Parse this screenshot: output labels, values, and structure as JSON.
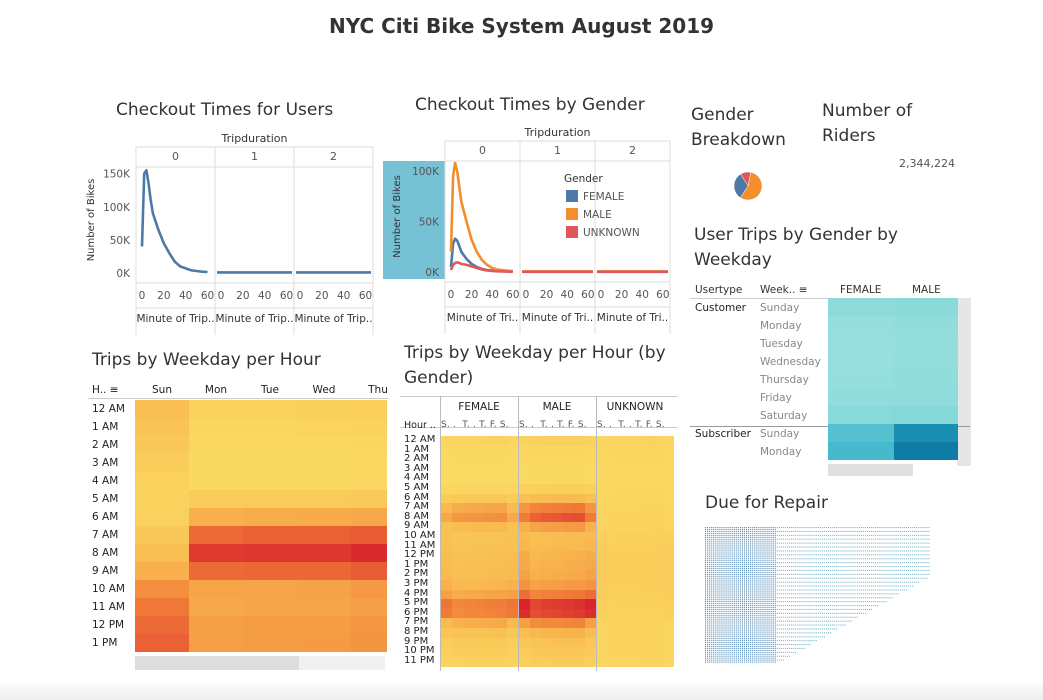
{
  "dashboard": {
    "title": "NYC Citi Bike System August 2019",
    "colors": {
      "line_blue": "#4e79a7",
      "orange": "#f28e2b",
      "red": "#e15759",
      "highlight": "#76c1d4",
      "teal_light": "#a3e4e0",
      "teal_dark": "#0e7fa8"
    }
  },
  "checkout_users": {
    "title": "Checkout Times for Users",
    "header": "Tripduration",
    "panels": [
      "0",
      "1",
      "2"
    ],
    "ylabel": "Number of Bikes",
    "xlabel": "Minute of Trip..",
    "yticks": [
      "150K",
      "100K",
      "50K",
      "0K"
    ],
    "xticks": [
      "0",
      "20",
      "40",
      "60"
    ]
  },
  "checkout_gender": {
    "title": "Checkout Times by Gender",
    "header": "Tripduration",
    "panels": [
      "0",
      "1",
      "2"
    ],
    "ylabel": "Number of Bikes",
    "xlabel": "Minute of Tri..",
    "yticks": [
      "100K",
      "50K",
      "0K"
    ],
    "xticks": [
      "0",
      "20",
      "40",
      "60"
    ],
    "legend_title": "Gender",
    "legend": [
      {
        "label": "FEMALE",
        "color": "#4e79a7"
      },
      {
        "label": "MALE",
        "color": "#f28e2b"
      },
      {
        "label": "UNKNOWN",
        "color": "#e15759"
      }
    ]
  },
  "gender_breakdown": {
    "title": "Gender Breakdown"
  },
  "riders": {
    "title": "Number of Riders",
    "value": "2,344,224"
  },
  "user_trips": {
    "title": "User Trips by Gender by Weekday",
    "col_usertype": "Usertype",
    "col_weekday": "Week..",
    "col_female": "FEMALE",
    "col_male": "MALE",
    "groups": [
      {
        "name": "Customer",
        "days": [
          "Sunday",
          "Monday",
          "Tuesday",
          "Wednesday",
          "Thursday",
          "Friday",
          "Saturday"
        ]
      },
      {
        "name": "Subscriber",
        "days": [
          "Sunday",
          "Monday"
        ]
      }
    ]
  },
  "weekday_hour": {
    "title": "Trips by Weekday per Hour",
    "row_header": "H..",
    "columns": [
      "Sun",
      "Mon",
      "Tue",
      "Wed",
      "Thu"
    ],
    "rows": [
      "12 AM",
      "1 AM",
      "2 AM",
      "3 AM",
      "4 AM",
      "5 AM",
      "6 AM",
      "7 AM",
      "8 AM",
      "9 AM",
      "10 AM",
      "11 AM",
      "12 PM",
      "1 PM"
    ]
  },
  "weekday_hour_gender": {
    "title": "Trips by Weekday per Hour (by Gender)",
    "row_header": "Hour ..",
    "groups": [
      "FEMALE",
      "MALE",
      "UNKNOWN"
    ],
    "day_letters": "S. .  T. . T. F. S.",
    "rows": [
      "12 AM",
      "1 AM",
      "2 AM",
      "3 AM",
      "4 AM",
      "5 AM",
      "6 AM",
      "7 AM",
      "8 AM",
      "9 AM",
      "10 AM",
      "11 AM",
      "12 PM",
      "1 PM",
      "2 PM",
      "3 PM",
      "4 PM",
      "5 PM",
      "6 PM",
      "7 PM",
      "8 PM",
      "9 PM",
      "10 PM",
      "11 PM"
    ]
  },
  "repair": {
    "title": "Due for Repair"
  },
  "chart_data": [
    {
      "type": "line",
      "title": "Checkout Times for Users",
      "xlabel": "Minute of Trip..",
      "ylabel": "Number of Bikes",
      "ylim": [
        0,
        160000
      ],
      "x": [
        0,
        2,
        4,
        6,
        8,
        10,
        15,
        20,
        25,
        30,
        35,
        40,
        45,
        50,
        55,
        60
      ],
      "series": [
        {
          "values": [
            40000,
            150000,
            155000,
            135000,
            110000,
            90000,
            65000,
            45000,
            30000,
            17000,
            10000,
            7000,
            4000,
            3000,
            2000,
            1500
          ]
        }
      ]
    },
    {
      "type": "line",
      "title": "Checkout Times by Gender",
      "xlabel": "Minute of Tri..",
      "ylabel": "Number of Bikes",
      "ylim": [
        0,
        110000
      ],
      "x": [
        0,
        2,
        4,
        6,
        8,
        10,
        15,
        20,
        25,
        30,
        35,
        40,
        45,
        50,
        55,
        60
      ],
      "series": [
        {
          "name": "FEMALE",
          "values": [
            5000,
            28000,
            33000,
            31000,
            26000,
            20000,
            13000,
            8000,
            5000,
            3000,
            2000,
            1500,
            1000,
            800,
            600,
            500
          ]
        },
        {
          "name": "MALE",
          "values": [
            20000,
            95000,
            108000,
            100000,
            85000,
            70000,
            50000,
            32000,
            20000,
            12000,
            7000,
            4000,
            2500,
            1800,
            1200,
            1000
          ]
        },
        {
          "name": "UNKNOWN",
          "values": [
            2000,
            7000,
            9000,
            9500,
            9000,
            8000,
            7000,
            5500,
            4000,
            2500,
            1500,
            1000,
            700,
            500,
            400,
            300
          ]
        }
      ]
    },
    {
      "type": "pie",
      "title": "Gender Breakdown",
      "slices": [
        {
          "name": "MALE",
          "value": 0.56
        },
        {
          "name": "FEMALE",
          "value": 0.32
        },
        {
          "name": "UNKNOWN",
          "value": 0.12
        }
      ]
    },
    {
      "type": "heatmap",
      "title": "User Trips by Gender by Weekday",
      "rows": [
        "Customer Sunday",
        "Customer Monday",
        "Customer Tuesday",
        "Customer Wednesday",
        "Customer Thursday",
        "Customer Friday",
        "Customer Saturday",
        "Subscriber Sunday",
        "Subscriber Monday"
      ],
      "columns": [
        "FEMALE",
        "MALE"
      ],
      "values": [
        [
          0.3,
          0.32
        ],
        [
          0.22,
          0.24
        ],
        [
          0.2,
          0.22
        ],
        [
          0.2,
          0.23
        ],
        [
          0.22,
          0.25
        ],
        [
          0.24,
          0.28
        ],
        [
          0.34,
          0.38
        ],
        [
          0.55,
          0.85
        ],
        [
          0.6,
          0.95
        ]
      ]
    },
    {
      "type": "heatmap",
      "title": "Trips by Weekday per Hour",
      "rows": [
        "12 AM",
        "1 AM",
        "2 AM",
        "3 AM",
        "4 AM",
        "5 AM",
        "6 AM",
        "7 AM",
        "8 AM",
        "9 AM",
        "10 AM",
        "11 AM",
        "12 PM",
        "1 PM"
      ],
      "columns": [
        "Sun",
        "Mon",
        "Tue",
        "Wed",
        "Thu"
      ],
      "values": [
        [
          0.35,
          0.15,
          0.15,
          0.16,
          0.18
        ],
        [
          0.3,
          0.1,
          0.1,
          0.11,
          0.12
        ],
        [
          0.25,
          0.08,
          0.08,
          0.08,
          0.09
        ],
        [
          0.2,
          0.06,
          0.06,
          0.06,
          0.07
        ],
        [
          0.15,
          0.06,
          0.06,
          0.06,
          0.07
        ],
        [
          0.12,
          0.2,
          0.21,
          0.21,
          0.22
        ],
        [
          0.15,
          0.45,
          0.46,
          0.47,
          0.48
        ],
        [
          0.25,
          0.75,
          0.78,
          0.78,
          0.8
        ],
        [
          0.35,
          0.92,
          0.93,
          0.93,
          0.98
        ],
        [
          0.45,
          0.75,
          0.76,
          0.76,
          0.8
        ],
        [
          0.6,
          0.5,
          0.5,
          0.51,
          0.55
        ],
        [
          0.7,
          0.48,
          0.49,
          0.49,
          0.52
        ],
        [
          0.75,
          0.52,
          0.53,
          0.53,
          0.56
        ],
        [
          0.78,
          0.52,
          0.53,
          0.54,
          0.57
        ]
      ]
    },
    {
      "type": "heatmap",
      "title": "Trips by Weekday per Hour (by Gender)",
      "rows": [
        "12 AM",
        "1 AM",
        "2 AM",
        "3 AM",
        "4 AM",
        "5 AM",
        "6 AM",
        "7 AM",
        "8 AM",
        "9 AM",
        "10 AM",
        "11 AM",
        "12 PM",
        "1 PM",
        "2 PM",
        "3 PM",
        "4 PM",
        "5 PM",
        "6 PM",
        "7 PM",
        "8 PM",
        "9 PM",
        "10 PM",
        "11 PM"
      ],
      "columns": [
        "FEMALE",
        "MALE",
        "UNKNOWN"
      ],
      "values": [
        [
          0.12,
          0.16,
          0.12
        ],
        [
          0.08,
          0.1,
          0.1
        ],
        [
          0.06,
          0.08,
          0.09
        ],
        [
          0.05,
          0.06,
          0.08
        ],
        [
          0.05,
          0.06,
          0.08
        ],
        [
          0.1,
          0.18,
          0.09
        ],
        [
          0.25,
          0.4,
          0.1
        ],
        [
          0.5,
          0.7,
          0.12
        ],
        [
          0.6,
          0.85,
          0.14
        ],
        [
          0.4,
          0.55,
          0.14
        ],
        [
          0.3,
          0.38,
          0.16
        ],
        [
          0.32,
          0.4,
          0.18
        ],
        [
          0.35,
          0.44,
          0.2
        ],
        [
          0.36,
          0.46,
          0.2
        ],
        [
          0.38,
          0.48,
          0.2
        ],
        [
          0.42,
          0.55,
          0.19
        ],
        [
          0.5,
          0.7,
          0.18
        ],
        [
          0.68,
          0.95,
          0.16
        ],
        [
          0.66,
          0.92,
          0.15
        ],
        [
          0.48,
          0.65,
          0.14
        ],
        [
          0.32,
          0.44,
          0.13
        ],
        [
          0.24,
          0.33,
          0.13
        ],
        [
          0.2,
          0.27,
          0.13
        ],
        [
          0.15,
          0.21,
          0.12
        ]
      ]
    }
  ]
}
